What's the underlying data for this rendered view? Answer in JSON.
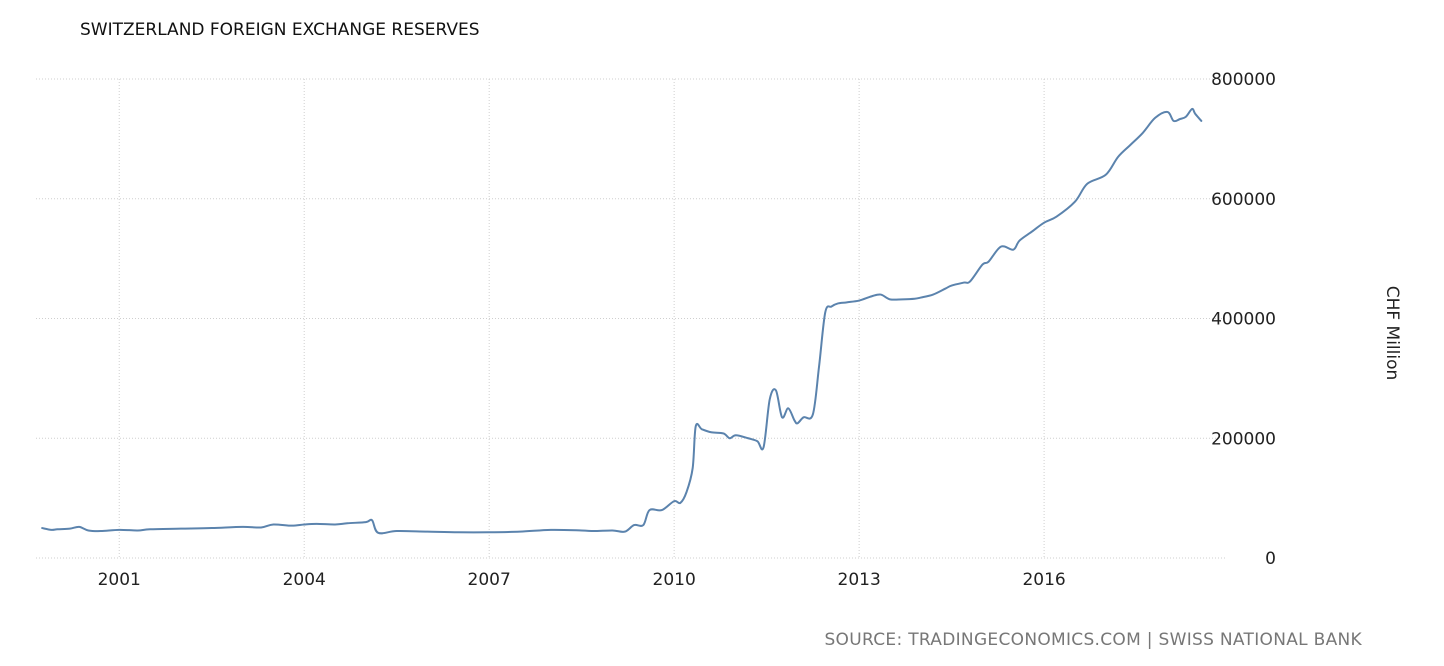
{
  "chart_data": {
    "type": "line",
    "title": "SWITZERLAND FOREIGN EXCHANGE RESERVES",
    "ylabel": "CHF Million",
    "source": "SOURCE: TRADINGECONOMICS.COM | SWISS NATIONAL BANK",
    "xlim": [
      1999.65,
      2018.95
    ],
    "ylim": [
      0,
      800000
    ],
    "x_ticks": [
      2001,
      2004,
      2007,
      2010,
      2013,
      2016
    ],
    "y_ticks": [
      0,
      200000,
      400000,
      600000,
      800000
    ],
    "x_tick_labels": [
      "2001",
      "2004",
      "2007",
      "2010",
      "2013",
      "2016"
    ],
    "y_tick_labels": [
      "0",
      "200000",
      "400000",
      "600000",
      "800000"
    ],
    "grid": true,
    "y_axis_position": "right",
    "legend": "none",
    "colors": {
      "line": "#5b83ad",
      "grid": "#cfcfcf"
    },
    "series": [
      {
        "x": [
          1999.75,
          1999.9,
          2000.0,
          2000.2,
          2000.35,
          2000.5,
          2000.7,
          2001.0,
          2001.3,
          2001.5,
          2002.0,
          2002.5,
          2003.0,
          2003.3,
          2003.5,
          2003.8,
          2004.0,
          2004.2,
          2004.5,
          2004.7,
          2005.0,
          2005.1,
          2005.2,
          2005.5,
          2006.0,
          2006.5,
          2007.0,
          2007.5,
          2008.0,
          2008.5,
          2008.7,
          2009.0,
          2009.2,
          2009.35,
          2009.5,
          2009.6,
          2009.8,
          2010.0,
          2010.1,
          2010.2,
          2010.3,
          2010.35,
          2010.45,
          2010.6,
          2010.8,
          2010.9,
          2011.0,
          2011.2,
          2011.35,
          2011.45,
          2011.55,
          2011.65,
          2011.75,
          2011.85,
          2011.95,
          2012.0,
          2012.1,
          2012.25,
          2012.35,
          2012.45,
          2012.55,
          2012.65,
          2012.8,
          2013.0,
          2013.2,
          2013.35,
          2013.5,
          2013.7,
          2013.9,
          2014.0,
          2014.2,
          2014.4,
          2014.5,
          2014.7,
          2014.8,
          2015.0,
          2015.1,
          2015.3,
          2015.5,
          2015.6,
          2015.8,
          2016.0,
          2016.2,
          2016.5,
          2016.7,
          2017.0,
          2017.2,
          2017.4,
          2017.6,
          2017.8,
          2018.0,
          2018.1,
          2018.2,
          2018.3,
          2018.4,
          2018.45,
          2018.55
        ],
        "values": [
          50000,
          47000,
          48000,
          49000,
          52000,
          46000,
          45000,
          47000,
          46000,
          48000,
          49000,
          50000,
          52000,
          51000,
          56000,
          54000,
          56000,
          57000,
          56000,
          58000,
          60000,
          63000,
          42000,
          45000,
          44000,
          43000,
          43000,
          44000,
          47000,
          46000,
          45000,
          46000,
          44000,
          55000,
          55000,
          80000,
          80000,
          95000,
          92000,
          110000,
          150000,
          220000,
          215000,
          210000,
          208000,
          200000,
          205000,
          200000,
          195000,
          185000,
          265000,
          280000,
          235000,
          250000,
          230000,
          225000,
          235000,
          240000,
          320000,
          410000,
          420000,
          425000,
          427000,
          430000,
          437000,
          440000,
          432000,
          432000,
          433000,
          435000,
          440000,
          450000,
          455000,
          460000,
          462000,
          490000,
          495000,
          520000,
          515000,
          530000,
          545000,
          560000,
          570000,
          595000,
          625000,
          640000,
          670000,
          690000,
          710000,
          735000,
          745000,
          730000,
          733000,
          737000,
          750000,
          742000,
          730000
        ]
      }
    ]
  }
}
